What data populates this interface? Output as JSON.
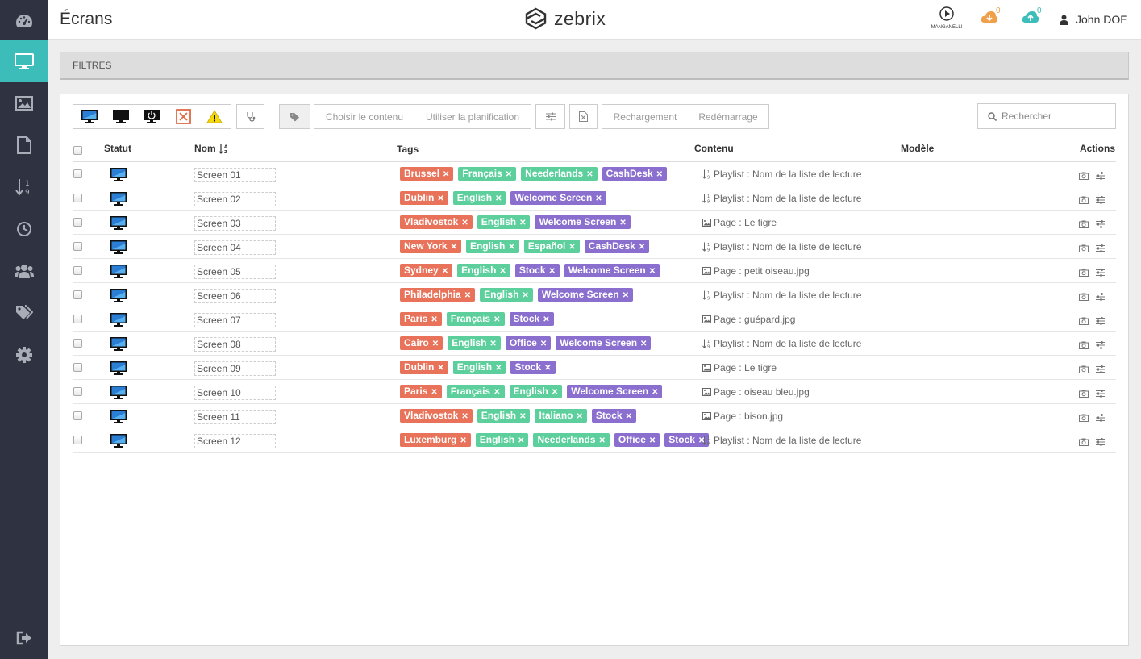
{
  "header": {
    "title": "Écrans",
    "brand": "zebrix",
    "partner": "MANGANELLI",
    "download_count": "0",
    "upload_count": "0",
    "user_name": "John DOE"
  },
  "sidebar": {
    "items": [
      {
        "icon": "dashboard-icon",
        "active": false
      },
      {
        "icon": "monitor-icon",
        "active": true
      },
      {
        "icon": "image-icon",
        "active": false
      },
      {
        "icon": "file-icon",
        "active": false
      },
      {
        "icon": "sort-numeric-icon",
        "active": false
      },
      {
        "icon": "clock-icon",
        "active": false
      },
      {
        "icon": "users-icon",
        "active": false
      },
      {
        "icon": "tags-icon",
        "active": false
      },
      {
        "icon": "gear-icon",
        "active": false
      }
    ],
    "logout_icon": "sign-out-icon"
  },
  "filters": {
    "label": "FILTRES"
  },
  "toolbar": {
    "choose_content": "Choisir le contenu",
    "use_planning": "Utiliser la planification",
    "reload": "Rechargement",
    "restart": "Redémarrage"
  },
  "search": {
    "placeholder": "Rechercher"
  },
  "table": {
    "headers": {
      "status": "Statut",
      "name": "Nom",
      "tags": "Tags",
      "content": "Contenu",
      "model": "Modèle",
      "actions": "Actions"
    },
    "rows": [
      {
        "name": "Screen 01",
        "tags": [
          {
            "label": "Brussel",
            "color": "#e8735a"
          },
          {
            "label": "Français",
            "color": "#5ccf9c"
          },
          {
            "label": "Neederlands",
            "color": "#5ccf9c"
          },
          {
            "label": "CashDesk",
            "color": "#8a6fcf"
          }
        ],
        "content_type": "playlist",
        "content": "Playlist : Nom de la liste de lecture"
      },
      {
        "name": "Screen 02",
        "tags": [
          {
            "label": "Dublin",
            "color": "#e8735a"
          },
          {
            "label": "English",
            "color": "#5ccf9c"
          },
          {
            "label": "Welcome Screen",
            "color": "#8a6fcf"
          }
        ],
        "content_type": "playlist",
        "content": "Playlist : Nom de la liste de lecture"
      },
      {
        "name": "Screen 03",
        "tags": [
          {
            "label": "Vladivostok",
            "color": "#e8735a"
          },
          {
            "label": "English",
            "color": "#5ccf9c"
          },
          {
            "label": "Welcome Screen",
            "color": "#8a6fcf"
          }
        ],
        "content_type": "page",
        "content": "Page : Le tigre"
      },
      {
        "name": "Screen 04",
        "tags": [
          {
            "label": "New York",
            "color": "#e8735a"
          },
          {
            "label": "English",
            "color": "#5ccf9c"
          },
          {
            "label": "Español",
            "color": "#5ccf9c"
          },
          {
            "label": "CashDesk",
            "color": "#8a6fcf"
          }
        ],
        "content_type": "playlist",
        "content": "Playlist : Nom de la liste de lecture"
      },
      {
        "name": "Screen 05",
        "tags": [
          {
            "label": "Sydney",
            "color": "#e8735a"
          },
          {
            "label": "English",
            "color": "#5ccf9c"
          },
          {
            "label": "Stock",
            "color": "#8a6fcf"
          },
          {
            "label": "Welcome Screen",
            "color": "#8a6fcf"
          }
        ],
        "content_type": "page",
        "content": "Page : petit oiseau.jpg"
      },
      {
        "name": "Screen 06",
        "tags": [
          {
            "label": "Philadelphia",
            "color": "#e8735a"
          },
          {
            "label": "English",
            "color": "#5ccf9c"
          },
          {
            "label": "Welcome Screen",
            "color": "#8a6fcf"
          }
        ],
        "content_type": "playlist",
        "content": "Playlist : Nom de la liste de lecture"
      },
      {
        "name": "Screen 07",
        "tags": [
          {
            "label": "Paris",
            "color": "#e8735a"
          },
          {
            "label": "Français",
            "color": "#5ccf9c"
          },
          {
            "label": "Stock",
            "color": "#8a6fcf"
          }
        ],
        "content_type": "page",
        "content": "Page : guépard.jpg"
      },
      {
        "name": "Screen 08",
        "tags": [
          {
            "label": "Cairo",
            "color": "#e8735a"
          },
          {
            "label": "English",
            "color": "#5ccf9c"
          },
          {
            "label": "Office",
            "color": "#8a6fcf"
          },
          {
            "label": "Welcome Screen",
            "color": "#8a6fcf"
          }
        ],
        "content_type": "playlist",
        "content": "Playlist : Nom de la liste de lecture"
      },
      {
        "name": "Screen 09",
        "tags": [
          {
            "label": "Dublin",
            "color": "#e8735a"
          },
          {
            "label": "English",
            "color": "#5ccf9c"
          },
          {
            "label": "Stock",
            "color": "#8a6fcf"
          }
        ],
        "content_type": "page",
        "content": "Page : Le tigre"
      },
      {
        "name": "Screen 10",
        "tags": [
          {
            "label": "Paris",
            "color": "#e8735a"
          },
          {
            "label": "Français",
            "color": "#5ccf9c"
          },
          {
            "label": "English",
            "color": "#5ccf9c"
          },
          {
            "label": "Welcome Screen",
            "color": "#8a6fcf"
          }
        ],
        "content_type": "page",
        "content": "Page : oiseau bleu.jpg"
      },
      {
        "name": "Screen 11",
        "tags": [
          {
            "label": "Vladivostok",
            "color": "#e8735a"
          },
          {
            "label": "English",
            "color": "#5ccf9c"
          },
          {
            "label": "Italiano",
            "color": "#5ccf9c"
          },
          {
            "label": "Stock",
            "color": "#8a6fcf"
          }
        ],
        "content_type": "page",
        "content": "Page : bison.jpg"
      },
      {
        "name": "Screen 12",
        "tags": [
          {
            "label": "Luxemburg",
            "color": "#e8735a"
          },
          {
            "label": "English",
            "color": "#5ccf9c"
          },
          {
            "label": "Neederlands",
            "color": "#5ccf9c"
          },
          {
            "label": "Office",
            "color": "#8a6fcf"
          },
          {
            "label": "Stock",
            "color": "#8a6fcf"
          }
        ],
        "content_type": "playlist",
        "content": "Playlist : Nom de la liste de lecture"
      }
    ]
  }
}
